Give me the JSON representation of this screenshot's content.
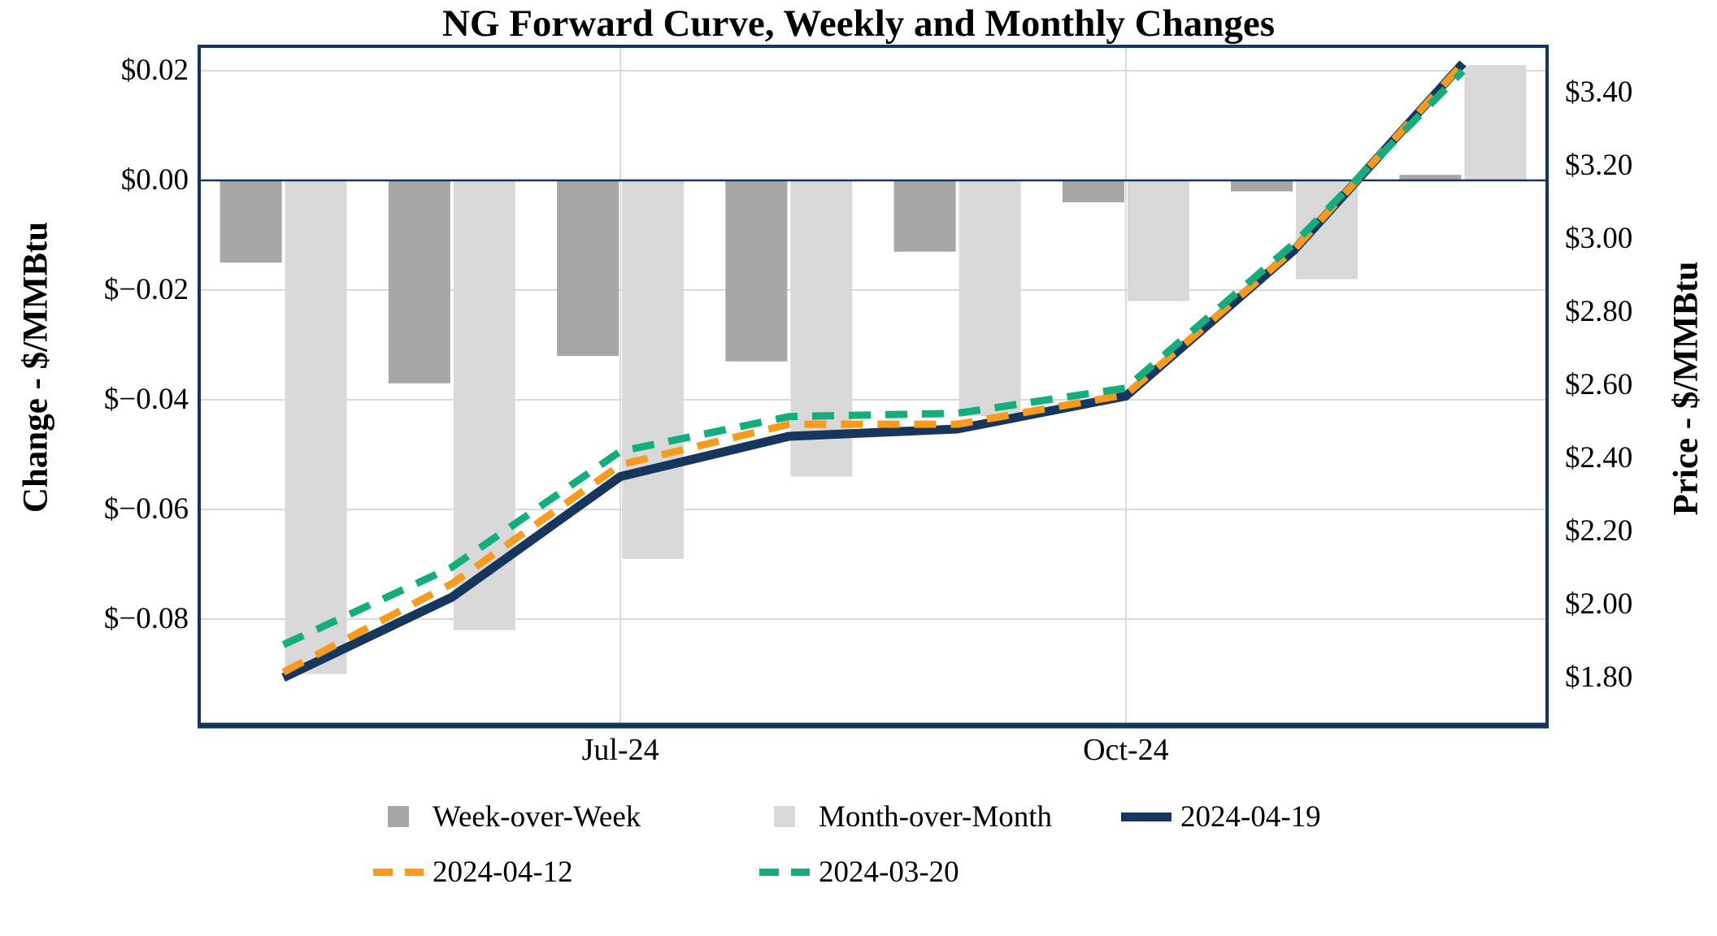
{
  "chart_data": {
    "type": "combo-bar-line",
    "title": "NG Forward Curve, Weekly and Monthly Changes",
    "x_count": 8,
    "x_tick_labels": [
      {
        "index": 2,
        "label": "Jul-24"
      },
      {
        "index": 5,
        "label": "Oct-24"
      }
    ],
    "left_axis": {
      "title": "Change - $/MMBtu",
      "ticks": [
        {
          "label": "$0.02",
          "value": 0.02
        },
        {
          "label": "$0.00",
          "value": 0.0
        },
        {
          "label": "$−0.02",
          "value": -0.02
        },
        {
          "label": "$−0.04",
          "value": -0.04
        },
        {
          "label": "$−0.06",
          "value": -0.06
        },
        {
          "label": "$−0.08",
          "value": -0.08
        }
      ]
    },
    "right_axis": {
      "title": "Price - $/MMBtu",
      "ticks": [
        {
          "label": "$3.40",
          "value": 3.4
        },
        {
          "label": "$3.20",
          "value": 3.2
        },
        {
          "label": "$3.00",
          "value": 3.0
        },
        {
          "label": "$2.80",
          "value": 2.8
        },
        {
          "label": "$2.60",
          "value": 2.6
        },
        {
          "label": "$2.40",
          "value": 2.4
        },
        {
          "label": "$2.20",
          "value": 2.2
        },
        {
          "label": "$2.00",
          "value": 2.0
        },
        {
          "label": "$1.80",
          "value": 1.8
        }
      ],
      "zero_change_price": 3.16,
      "price_per_grid_step": 0.3
    },
    "series": {
      "bars": [
        {
          "name": "Week-over-Week",
          "axis": "left",
          "color": "#a6a6a6",
          "values": [
            -0.015,
            -0.037,
            -0.032,
            -0.033,
            -0.013,
            -0.004,
            -0.002,
            0.001
          ]
        },
        {
          "name": "Month-over-Month",
          "axis": "left",
          "color": "#d9d9d9",
          "values": [
            -0.09,
            -0.082,
            -0.069,
            -0.054,
            -0.043,
            -0.022,
            -0.018,
            0.021
          ]
        }
      ],
      "lines": [
        {
          "name": "2024-04-19",
          "axis": "right",
          "color": "#17365d",
          "style": "solid",
          "values": [
            1.8,
            2.02,
            2.35,
            2.46,
            2.48,
            2.57,
            2.97,
            3.48
          ]
        },
        {
          "name": "2024-04-12",
          "axis": "right",
          "color": "#f79b1e",
          "style": "dashed",
          "values": [
            1.815,
            2.057,
            2.382,
            2.493,
            2.493,
            2.574,
            2.972,
            3.479
          ]
        },
        {
          "name": "2024-03-20",
          "axis": "right",
          "color": "#16ad7e",
          "style": "dashed",
          "values": [
            1.89,
            2.102,
            2.419,
            2.514,
            2.523,
            2.592,
            2.988,
            3.459
          ]
        }
      ]
    },
    "colors": {
      "gridline": "#d9d9d9",
      "zero_line": "#17365d",
      "border": "#17365d",
      "background": "#ffffff"
    },
    "legend_position": "bottom"
  }
}
